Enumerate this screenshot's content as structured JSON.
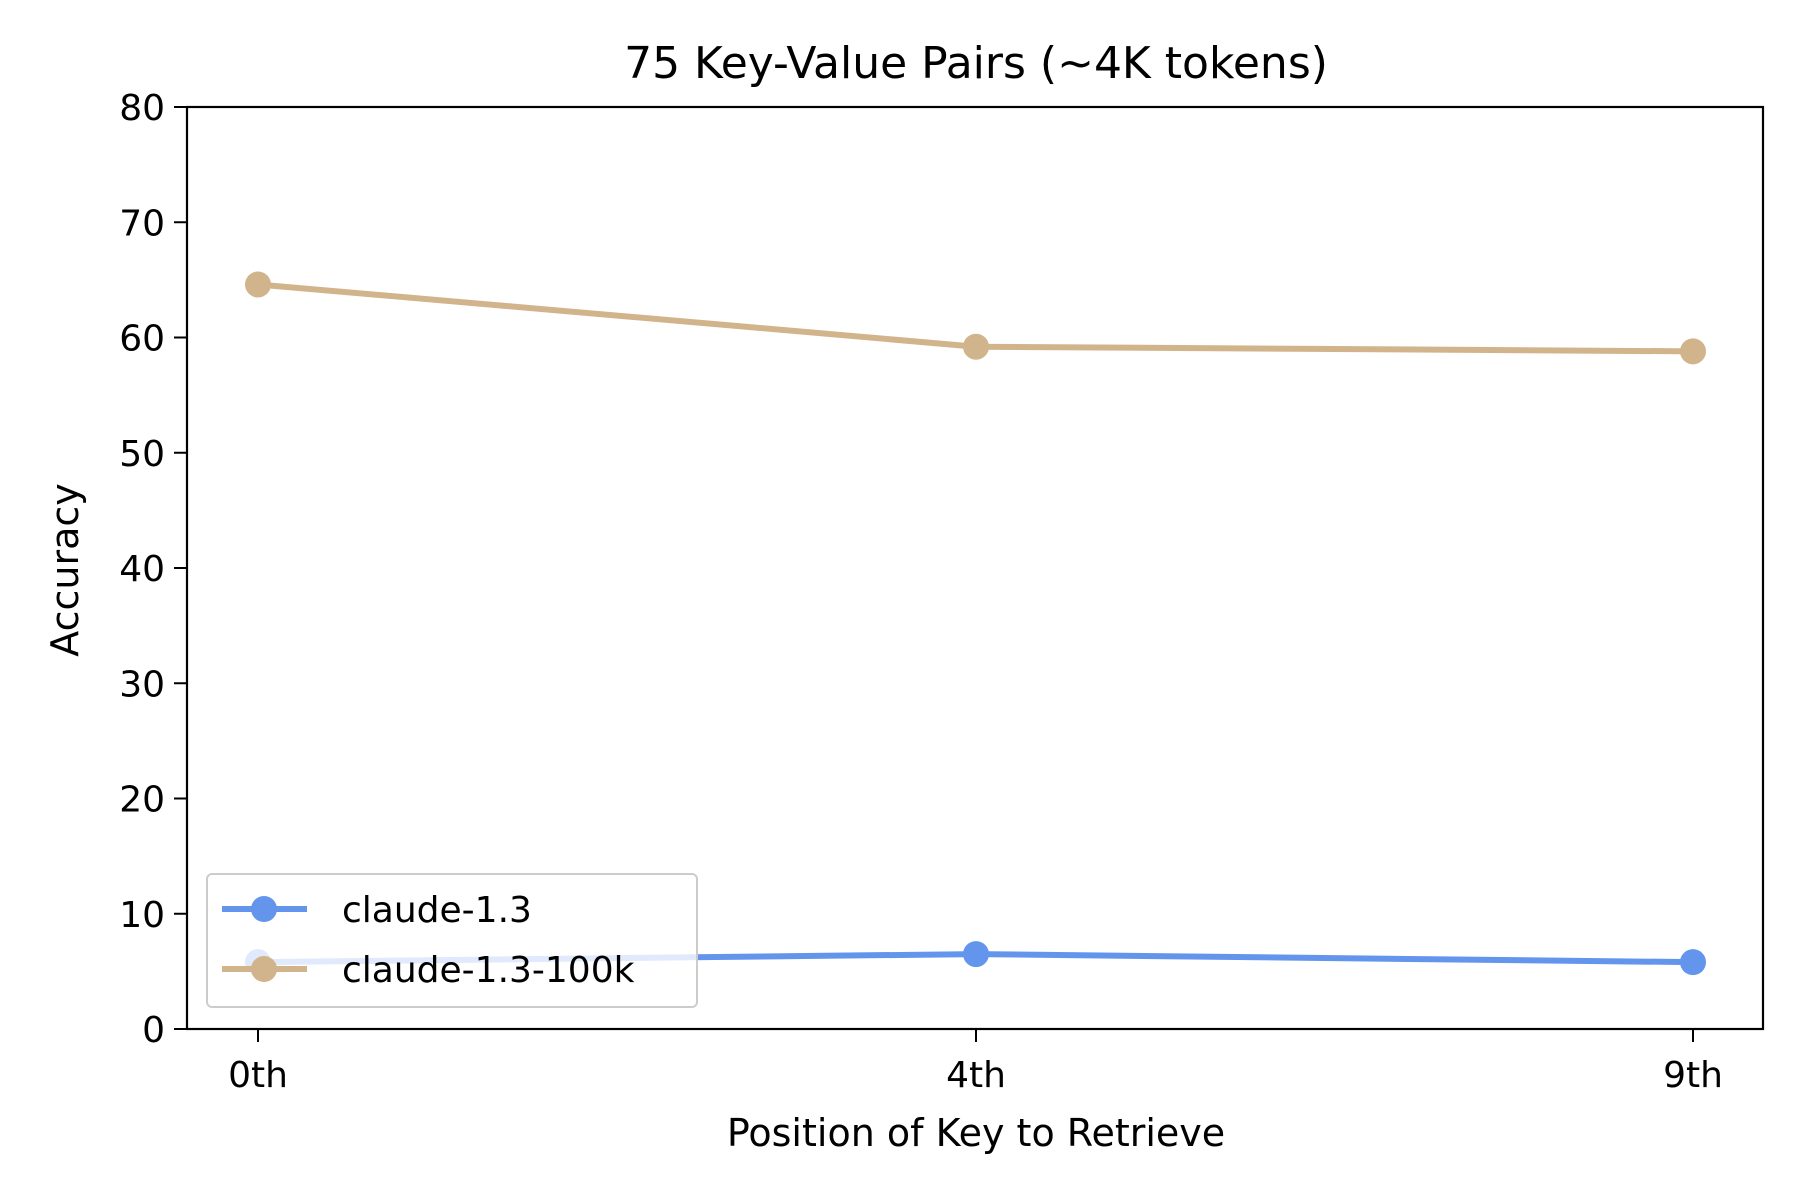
{
  "chart_data": {
    "type": "line",
    "title": "75 Key-Value Pairs (~4K tokens)",
    "xlabel": "Position of Key to Retrieve",
    "ylabel": "Accuracy",
    "categories": [
      "0th",
      "4th",
      "9th"
    ],
    "ylim": [
      0,
      80
    ],
    "yticks": [
      0,
      10,
      20,
      30,
      40,
      50,
      60,
      70,
      80
    ],
    "grid": false,
    "legend_position": "lower-left",
    "series": [
      {
        "name": "claude-1.3",
        "color": "#6495ED",
        "values": [
          5.8,
          6.5,
          5.8
        ]
      },
      {
        "name": "claude-1.3-100k",
        "color": "#D2B48C",
        "values": [
          64.6,
          59.2,
          58.8
        ]
      }
    ]
  }
}
